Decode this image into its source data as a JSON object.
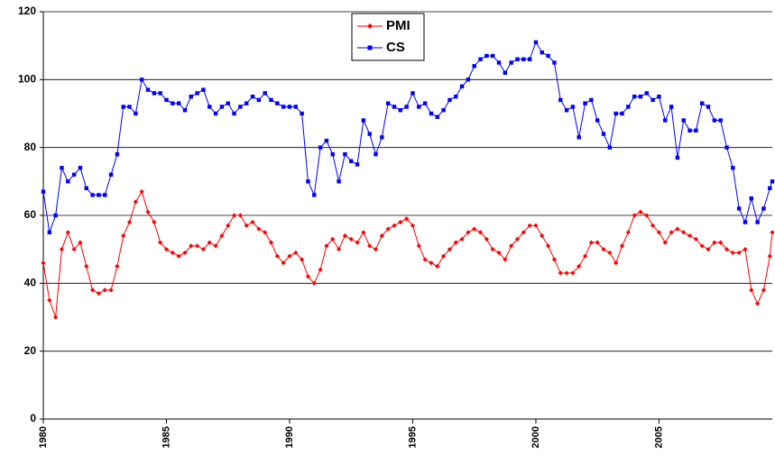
{
  "chart_data": {
    "type": "line",
    "x": [
      1980.0,
      1980.25,
      1980.5,
      1980.75,
      1981.0,
      1981.25,
      1981.5,
      1981.75,
      1982.0,
      1982.25,
      1982.5,
      1982.75,
      1983.0,
      1983.25,
      1983.5,
      1983.75,
      1984.0,
      1984.25,
      1984.5,
      1984.75,
      1985.0,
      1985.25,
      1985.5,
      1985.75,
      1986.0,
      1986.25,
      1986.5,
      1986.75,
      1987.0,
      1987.25,
      1987.5,
      1987.75,
      1988.0,
      1988.25,
      1988.5,
      1988.75,
      1989.0,
      1989.25,
      1989.5,
      1989.75,
      1990.0,
      1990.25,
      1990.5,
      1990.75,
      1991.0,
      1991.25,
      1991.5,
      1991.75,
      1992.0,
      1992.25,
      1992.5,
      1992.75,
      1993.0,
      1993.25,
      1993.5,
      1993.75,
      1994.0,
      1994.25,
      1994.5,
      1994.75,
      1995.0,
      1995.25,
      1995.5,
      1995.75,
      1996.0,
      1996.25,
      1996.5,
      1996.75,
      1997.0,
      1997.25,
      1997.5,
      1997.75,
      1998.0,
      1998.25,
      1998.5,
      1998.75,
      1999.0,
      1999.25,
      1999.5,
      1999.75,
      2000.0,
      2000.25,
      2000.5,
      2000.75,
      2001.0,
      2001.25,
      2001.5,
      2001.75,
      2002.0,
      2002.25,
      2002.5,
      2002.75,
      2003.0,
      2003.25,
      2003.5,
      2003.75,
      2004.0,
      2004.25,
      2004.5,
      2004.75,
      2005.0,
      2005.25,
      2005.5,
      2005.75,
      2006.0,
      2006.25,
      2006.5,
      2006.75,
      2007.0,
      2007.25,
      2007.5,
      2007.75,
      2008.0,
      2008.25,
      2008.5,
      2008.75,
      2009.0,
      2009.25,
      2009.5,
      2009.6
    ],
    "series": [
      {
        "name": "PMI",
        "color": "#ff0000",
        "marker": "diamond",
        "values": [
          46,
          35,
          30,
          50,
          55,
          50,
          52,
          45,
          38,
          37,
          38,
          38,
          45,
          54,
          58,
          64,
          67,
          61,
          58,
          52,
          50,
          49,
          48,
          49,
          51,
          51,
          50,
          52,
          51,
          54,
          57,
          60,
          60,
          57,
          58,
          56,
          55,
          52,
          48,
          46,
          48,
          49,
          47,
          42,
          40,
          44,
          51,
          53,
          50,
          54,
          53,
          52,
          55,
          51,
          50,
          54,
          56,
          57,
          58,
          59,
          57,
          51,
          47,
          46,
          45,
          48,
          50,
          52,
          53,
          55,
          56,
          55,
          53,
          50,
          49,
          47,
          51,
          53,
          55,
          57,
          57,
          54,
          51,
          47,
          43,
          43,
          43,
          45,
          48,
          52,
          52,
          50,
          49,
          46,
          51,
          55,
          60,
          61,
          60,
          57,
          55,
          52,
          55,
          56,
          55,
          54,
          53,
          51,
          50,
          52,
          52,
          50,
          49,
          49,
          50,
          38,
          34,
          38,
          48,
          55
        ]
      },
      {
        "name": "CS",
        "color": "#0000ff",
        "marker": "square",
        "values": [
          67,
          55,
          60,
          74,
          70,
          72,
          74,
          68,
          66,
          66,
          66,
          72,
          78,
          92,
          92,
          90,
          100,
          97,
          96,
          96,
          94,
          93,
          93,
          91,
          95,
          96,
          97,
          92,
          90,
          92,
          93,
          90,
          92,
          93,
          95,
          94,
          96,
          94,
          93,
          92,
          92,
          92,
          90,
          70,
          66,
          80,
          82,
          78,
          70,
          78,
          76,
          75,
          88,
          84,
          78,
          83,
          93,
          92,
          91,
          92,
          96,
          92,
          93,
          90,
          89,
          91,
          94,
          95,
          98,
          100,
          104,
          106,
          107,
          107,
          105,
          102,
          105,
          106,
          106,
          106,
          111,
          108,
          107,
          105,
          94,
          91,
          92,
          83,
          93,
          94,
          88,
          84,
          80,
          90,
          90,
          92,
          95,
          95,
          96,
          94,
          95,
          88,
          92,
          77,
          88,
          85,
          85,
          93,
          92,
          88,
          88,
          80,
          74,
          62,
          58,
          65,
          58,
          62,
          68,
          70
        ]
      }
    ],
    "xlim": [
      1980,
      2009.6
    ],
    "xticks": [
      1980,
      1985,
      1990,
      1995,
      2000,
      2005
    ],
    "ylim": [
      0,
      120
    ],
    "yticks": [
      0,
      20,
      40,
      60,
      80,
      100,
      120
    ],
    "grid": true,
    "legend": "top"
  }
}
